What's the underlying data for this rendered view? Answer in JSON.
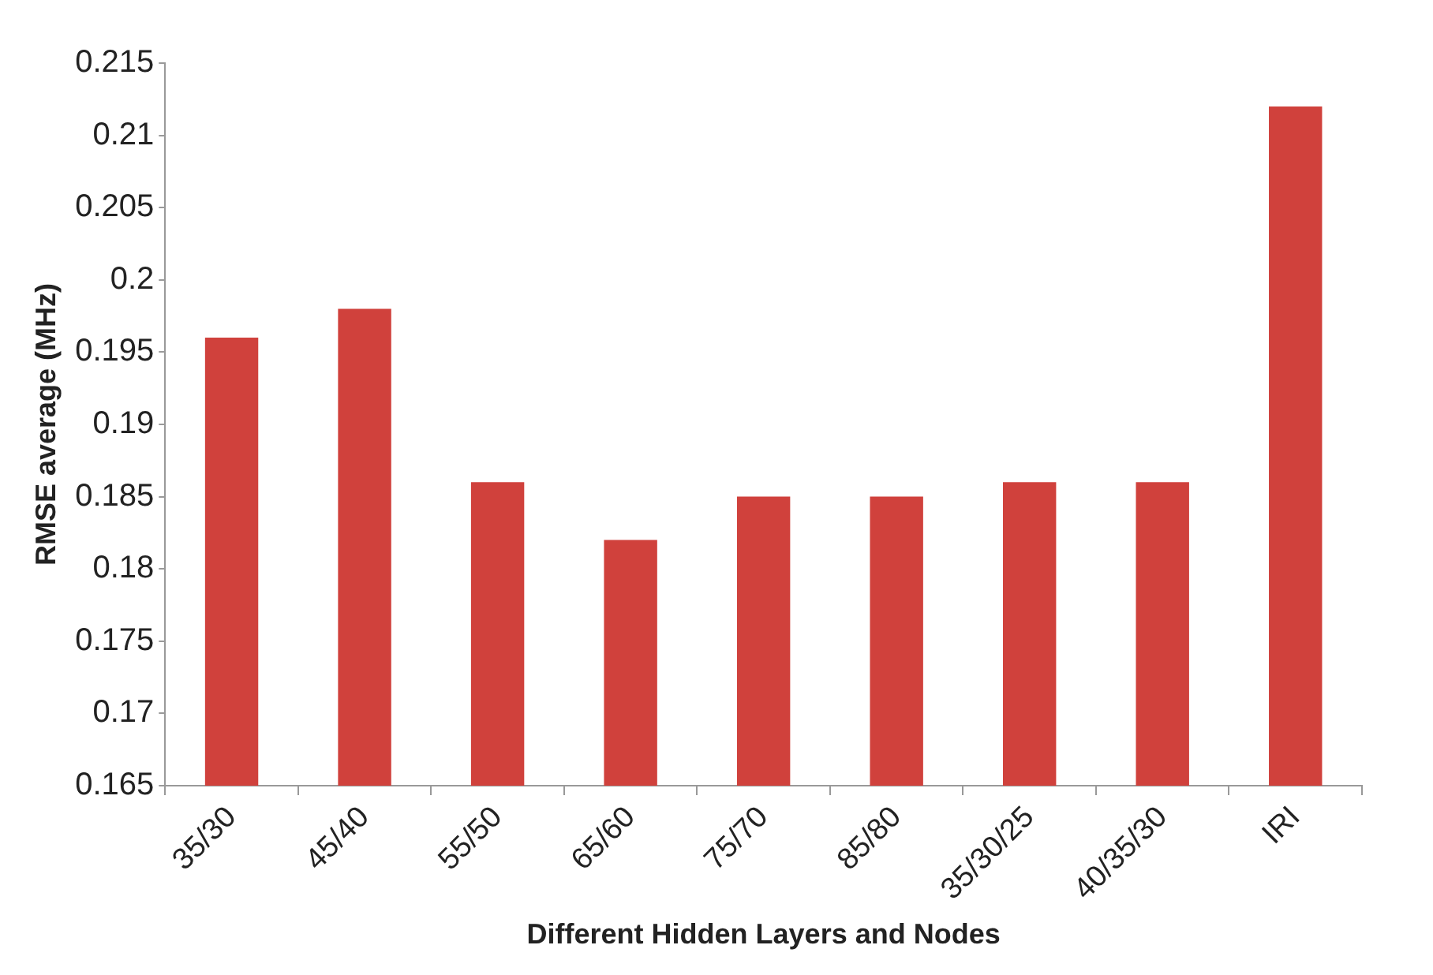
{
  "chart_data": {
    "type": "bar",
    "xlabel": "Different Hidden Layers and Nodes",
    "ylabel": "RMSE average (MHz)",
    "categories": [
      "35/30",
      "45/40",
      "55/50",
      "65/60",
      "75/70",
      "85/80",
      "35/30/25",
      "40/35/30",
      "IRI"
    ],
    "values": [
      0.196,
      0.198,
      0.186,
      0.182,
      0.185,
      0.185,
      0.186,
      0.186,
      0.212
    ],
    "color": "#d0413c",
    "ylim": [
      0.165,
      0.215
    ],
    "yticks": [
      0.165,
      0.17,
      0.175,
      0.18,
      0.185,
      0.19,
      0.195,
      0.2,
      0.205,
      0.21,
      0.215
    ],
    "grid": false,
    "legend": false
  }
}
